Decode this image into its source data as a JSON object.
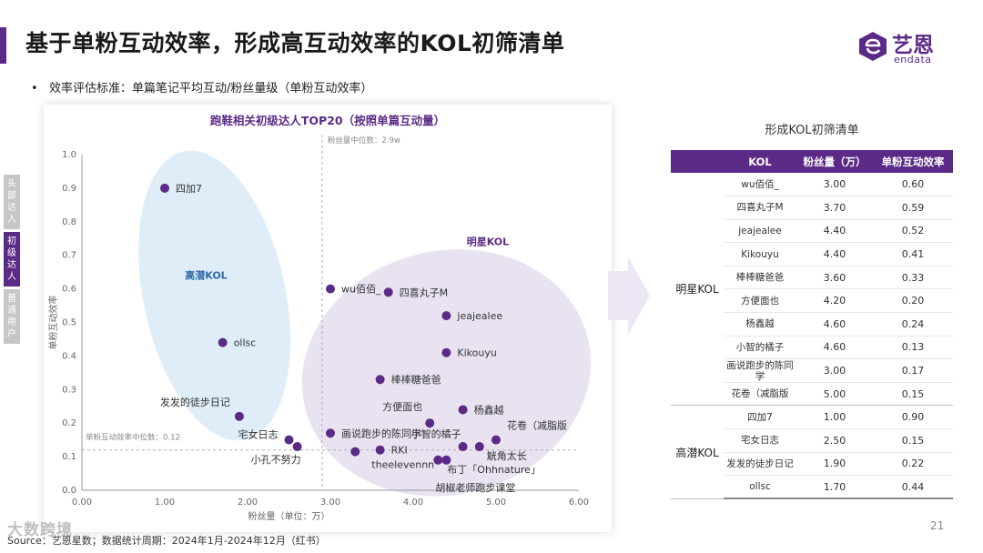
{
  "page": {
    "title": "基于单粉互动效率，形成高互动效率的KOL初筛清单",
    "criteria": "效率评估标准：单篇笔记平均互动/粉丝量级（单粉互动效率）",
    "page_number": "21",
    "source": "Source：艺恩星数；数据统计周期：2024年1月-2024年12月（红书）",
    "watermark": "大数跨境"
  },
  "logo": {
    "name": "艺恩",
    "sub": "endata"
  },
  "side_tabs": [
    {
      "label": "头部达人",
      "active": false
    },
    {
      "label": "初级达人",
      "active": true
    },
    {
      "label": "普通用户",
      "active": false
    }
  ],
  "colors": {
    "brand": "#5b2a86",
    "point": "#5b2a86",
    "star_zone": "#e7dff0",
    "potential_zone": "#dcebf7"
  },
  "chart_data": {
    "type": "scatter",
    "title": "跑鞋相关初级达人TOP20（按照单篇互动量）",
    "xlabel": "粉丝量（单位：万）",
    "ylabel": "单粉互动效率",
    "xlim": [
      0,
      6
    ],
    "ylim": [
      0,
      1
    ],
    "x_ticks": [
      "0.00",
      "1.00",
      "2.00",
      "3.00",
      "4.00",
      "5.00",
      "6.00"
    ],
    "y_ticks": [
      "0.0",
      "0.1",
      "0.2",
      "0.3",
      "0.4",
      "0.5",
      "0.6",
      "0.7",
      "0.8",
      "0.9",
      "1.0"
    ],
    "x_median": 2.9,
    "x_median_label": "粉丝量中位数：2.9w",
    "y_median": 0.12,
    "y_median_label": "单粉互动效率中位数：0.12",
    "zones": [
      {
        "name": "高潜KOL"
      },
      {
        "name": "明星KOL"
      }
    ],
    "points": [
      {
        "label": "四加7",
        "x": 1.0,
        "y": 0.9
      },
      {
        "label": "ollsc",
        "x": 1.7,
        "y": 0.44
      },
      {
        "label": "发发的徒步日记",
        "x": 1.9,
        "y": 0.22
      },
      {
        "label": "宅女日志",
        "x": 2.5,
        "y": 0.15
      },
      {
        "label": "小孔不努力",
        "x": 2.6,
        "y": 0.13
      },
      {
        "label": "wu佰佰_",
        "x": 3.0,
        "y": 0.6
      },
      {
        "label": "四喜丸子M",
        "x": 3.7,
        "y": 0.59
      },
      {
        "label": "jeajealee",
        "x": 4.4,
        "y": 0.52
      },
      {
        "label": "Kikouyu",
        "x": 4.4,
        "y": 0.41
      },
      {
        "label": "棒棒糖爸爸",
        "x": 3.6,
        "y": 0.33
      },
      {
        "label": "方便面也",
        "x": 4.2,
        "y": 0.2
      },
      {
        "label": "杨鑫越",
        "x": 4.6,
        "y": 0.24
      },
      {
        "label": "画说跑步的陈同学",
        "x": 3.0,
        "y": 0.17
      },
      {
        "label": "小智的橘子",
        "x": 4.6,
        "y": 0.13
      },
      {
        "label": "花卷（减脂版",
        "x": 5.0,
        "y": 0.15
      },
      {
        "label": "RKI",
        "x": 3.6,
        "y": 0.12
      },
      {
        "label": "theelevennn",
        "x": 3.3,
        "y": 0.115
      },
      {
        "label": "觥角太长",
        "x": 4.8,
        "y": 0.13
      },
      {
        "label": "布丁「Ohhnature」",
        "x": 4.3,
        "y": 0.09
      },
      {
        "label": "胡椒老师跑步课堂",
        "x": 4.4,
        "y": 0.09
      }
    ]
  },
  "kol_table": {
    "title": "形成KOL初筛清单",
    "headers": [
      "KOL",
      "粉丝量（万）",
      "单粉互动效率"
    ],
    "star_group": "明星KOL",
    "potential_group": "高潜KOL",
    "star_rows": [
      {
        "name": "wu佰佰_",
        "fans": "3.00",
        "eff": "0.60"
      },
      {
        "name": "四喜丸子M",
        "fans": "3.70",
        "eff": "0.59"
      },
      {
        "name": "jeajealee",
        "fans": "4.40",
        "eff": "0.52"
      },
      {
        "name": "Kikouyu",
        "fans": "4.40",
        "eff": "0.41"
      },
      {
        "name": "棒棒糖爸爸",
        "fans": "3.60",
        "eff": "0.33"
      },
      {
        "name": "方便面也",
        "fans": "4.20",
        "eff": "0.20"
      },
      {
        "name": "杨鑫越",
        "fans": "4.60",
        "eff": "0.24"
      },
      {
        "name": "小智的橘子",
        "fans": "4.60",
        "eff": "0.13"
      },
      {
        "name": "画说跑步的陈同学",
        "fans": "3.00",
        "eff": "0.17"
      },
      {
        "name": "花卷（减脂版",
        "fans": "5.00",
        "eff": "0.15"
      }
    ],
    "potential_rows": [
      {
        "name": "四加7",
        "fans": "1.00",
        "eff": "0.90"
      },
      {
        "name": "宅女日志",
        "fans": "2.50",
        "eff": "0.15"
      },
      {
        "name": "发发的徒步日记",
        "fans": "1.90",
        "eff": "0.22"
      },
      {
        "name": "ollsc",
        "fans": "1.70",
        "eff": "0.44"
      }
    ]
  }
}
